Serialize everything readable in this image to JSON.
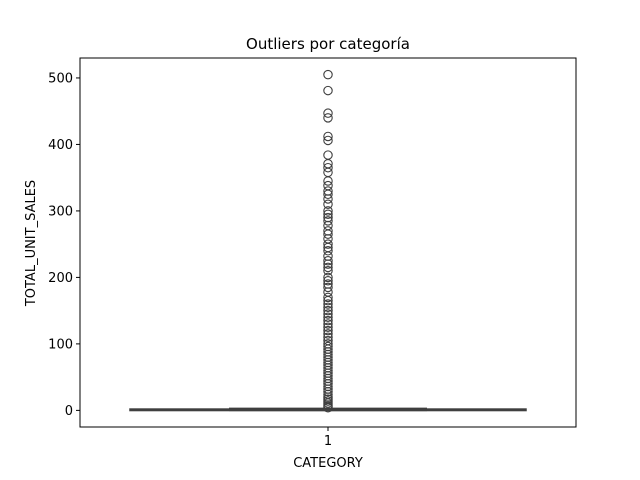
{
  "chart_data": {
    "type": "box",
    "title": "Outliers por categoría",
    "xlabel": "CATEGORY",
    "ylabel": "TOTAL_UNIT_SALES",
    "categories": [
      "1"
    ],
    "y_ticks": [
      0,
      100,
      200,
      300,
      400,
      500
    ],
    "ylim": [
      -25,
      530
    ],
    "grid": false,
    "box": {
      "whisker_low": 0,
      "q1": 0,
      "median": 1,
      "q3": 2,
      "whisker_high": 3
    },
    "outliers": [
      505,
      481,
      447,
      440,
      412,
      406,
      384,
      371,
      365,
      358,
      345,
      338,
      330,
      325,
      318,
      310,
      300,
      295,
      290,
      285,
      278,
      270,
      265,
      258,
      250,
      245,
      240,
      232,
      225,
      220,
      215,
      210,
      200,
      195,
      190,
      185,
      178,
      170,
      165,
      160,
      155,
      150,
      145,
      140,
      135,
      130,
      125,
      120,
      115,
      110,
      105,
      100,
      96,
      92,
      88,
      84,
      80,
      76,
      72,
      68,
      64,
      60,
      56,
      52,
      48,
      44,
      40,
      36,
      32,
      28,
      24,
      20,
      17,
      14,
      11,
      8,
      6,
      4
    ],
    "colors": {
      "box_fill": "#3274a1",
      "line": "#3f3f3f",
      "axes": "#000000"
    }
  }
}
